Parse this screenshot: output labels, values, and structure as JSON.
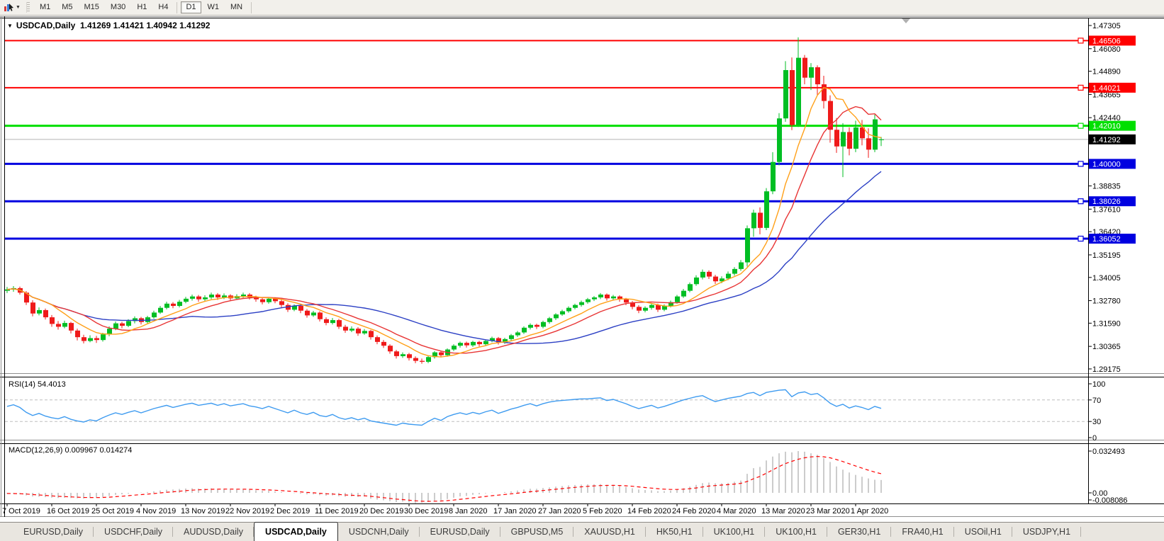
{
  "toolbar": {
    "cursor_tool_icon": "chart-cursor-icon",
    "dropdown_icon": "chevron-down-icon",
    "timeframes": [
      {
        "label": "M1",
        "active": false
      },
      {
        "label": "M5",
        "active": false
      },
      {
        "label": "M15",
        "active": false
      },
      {
        "label": "M30",
        "active": false
      },
      {
        "label": "H1",
        "active": false
      },
      {
        "label": "H4",
        "active": false
      },
      {
        "label": "D1",
        "active": true
      },
      {
        "label": "W1",
        "active": false
      },
      {
        "label": "MN",
        "active": false
      }
    ]
  },
  "chart": {
    "title": "USDCAD,Daily",
    "ohlc_text": "1.41269 1.41421 1.40942 1.41292",
    "expander_icon": "triangle-down-icon"
  },
  "chart_data": {
    "type": "candlestick",
    "symbol": "USDCAD",
    "timeframe": "Daily",
    "current_bar": {
      "open": "1.41269",
      "high": "1.41421",
      "low": "1.40942",
      "close": "1.41292"
    },
    "current_price": {
      "value": "1.41292",
      "color": "#000000"
    },
    "y_axis": {
      "ticks": [
        "1.47305",
        "1.46080",
        "1.44890",
        "1.43665",
        "1.42440",
        "1.38835",
        "1.37610",
        "1.36420",
        "1.35195",
        "1.34005",
        "1.32780",
        "1.31590",
        "1.30365",
        "1.29175"
      ],
      "range": [
        1.286,
        1.4776
      ]
    },
    "x_axis": {
      "labels": [
        "7 Oct 2019",
        "16 Oct 2019",
        "25 Oct 2019",
        "4 Nov 2019",
        "13 Nov 2019",
        "22 Nov 2019",
        "2 Dec 2019",
        "11 Dec 2019",
        "20 Dec 2019",
        "30 Dec 2019",
        "8 Jan 2020",
        "17 Jan 2020",
        "27 Jan 2020",
        "5 Feb 2020",
        "14 Feb 2020",
        "24 Feb 2020",
        "4 Mar 2020",
        "13 Mar 2020",
        "23 Mar 2020",
        "1 Apr 2020"
      ],
      "label_step": 7
    },
    "levels": [
      {
        "value": "1.46506",
        "color": "#FF0000",
        "width": 2
      },
      {
        "value": "1.44021",
        "color": "#FF0000",
        "width": 2
      },
      {
        "value": "1.42010",
        "color": "#00DF00",
        "width": 3
      },
      {
        "value": "1.40000",
        "color": "#0000E0",
        "width": 3
      },
      {
        "value": "1.38026",
        "color": "#0000E0",
        "width": 3
      },
      {
        "value": "1.36052",
        "color": "#0000E0",
        "width": 3
      }
    ],
    "moving_averages": [
      {
        "name": "ma-slow",
        "period": 30,
        "color": "#2B3FC4"
      },
      {
        "name": "ma-mid",
        "period": 13,
        "color": "#E83535"
      },
      {
        "name": "ma-fast",
        "period": 8,
        "color": "#FFA018"
      }
    ],
    "style": {
      "bull": "#00BE23",
      "bear": "#EF1A1A",
      "background": "#FFFFFF",
      "axis_text": "#000000",
      "current_price_line": "#B4B4B4"
    },
    "candles": [
      [
        1.333,
        1.335,
        1.3318,
        1.3337
      ],
      [
        1.3337,
        1.3355,
        1.3325,
        1.3344
      ],
      [
        1.3344,
        1.3352,
        1.331,
        1.332
      ],
      [
        1.332,
        1.3328,
        1.3255,
        1.3268
      ],
      [
        1.3268,
        1.328,
        1.3195,
        1.321
      ],
      [
        1.321,
        1.3242,
        1.32,
        1.3228
      ],
      [
        1.3228,
        1.3236,
        1.3178,
        1.319
      ],
      [
        1.319,
        1.3202,
        1.314,
        1.3155
      ],
      [
        1.3155,
        1.317,
        1.3125,
        1.314
      ],
      [
        1.314,
        1.3172,
        1.3132,
        1.316
      ],
      [
        1.316,
        1.3166,
        1.3105,
        1.312
      ],
      [
        1.312,
        1.313,
        1.3068,
        1.3085
      ],
      [
        1.3085,
        1.3098,
        1.3052,
        1.3065
      ],
      [
        1.3065,
        1.3095,
        1.3058,
        1.308
      ],
      [
        1.308,
        1.3092,
        1.3055,
        1.307
      ],
      [
        1.307,
        1.3108,
        1.3062,
        1.31
      ],
      [
        1.31,
        1.3142,
        1.309,
        1.313
      ],
      [
        1.313,
        1.3168,
        1.3122,
        1.3158
      ],
      [
        1.3158,
        1.3166,
        1.3132,
        1.3145
      ],
      [
        1.3145,
        1.318,
        1.3138,
        1.317
      ],
      [
        1.317,
        1.3195,
        1.3158,
        1.3185
      ],
      [
        1.3185,
        1.3192,
        1.3152,
        1.3165
      ],
      [
        1.3165,
        1.3198,
        1.3158,
        1.319
      ],
      [
        1.319,
        1.3225,
        1.3182,
        1.3215
      ],
      [
        1.3215,
        1.325,
        1.3208,
        1.324
      ],
      [
        1.324,
        1.3272,
        1.3232,
        1.3262
      ],
      [
        1.3262,
        1.327,
        1.3238,
        1.325
      ],
      [
        1.325,
        1.3282,
        1.3242,
        1.3272
      ],
      [
        1.3272,
        1.3298,
        1.3264,
        1.3288
      ],
      [
        1.3288,
        1.331,
        1.3278,
        1.33
      ],
      [
        1.33,
        1.3308,
        1.3272,
        1.3285
      ],
      [
        1.3285,
        1.3306,
        1.3276,
        1.3295
      ],
      [
        1.3295,
        1.332,
        1.3286,
        1.331
      ],
      [
        1.331,
        1.3318,
        1.3282,
        1.3295
      ],
      [
        1.3295,
        1.3316,
        1.3286,
        1.3305
      ],
      [
        1.3305,
        1.3312,
        1.3278,
        1.329
      ],
      [
        1.329,
        1.3312,
        1.3282,
        1.3302
      ],
      [
        1.3302,
        1.332,
        1.3292,
        1.331
      ],
      [
        1.331,
        1.3318,
        1.3284,
        1.3295
      ],
      [
        1.3295,
        1.3304,
        1.3272,
        1.3285
      ],
      [
        1.3285,
        1.3294,
        1.3258,
        1.327
      ],
      [
        1.327,
        1.3296,
        1.3262,
        1.3288
      ],
      [
        1.3288,
        1.3296,
        1.3264,
        1.3275
      ],
      [
        1.3275,
        1.3284,
        1.3242,
        1.3255
      ],
      [
        1.3255,
        1.3264,
        1.3218,
        1.323
      ],
      [
        1.323,
        1.3258,
        1.3222,
        1.325
      ],
      [
        1.325,
        1.3258,
        1.3212,
        1.3225
      ],
      [
        1.3225,
        1.3234,
        1.3188,
        1.32
      ],
      [
        1.32,
        1.3224,
        1.3192,
        1.3215
      ],
      [
        1.3215,
        1.3222,
        1.3168,
        1.318
      ],
      [
        1.318,
        1.319,
        1.3148,
        1.316
      ],
      [
        1.316,
        1.3186,
        1.3152,
        1.3175
      ],
      [
        1.3175,
        1.3182,
        1.3128,
        1.314
      ],
      [
        1.314,
        1.315,
        1.3108,
        1.312
      ],
      [
        1.312,
        1.3142,
        1.3112,
        1.313
      ],
      [
        1.313,
        1.3138,
        1.3092,
        1.3105
      ],
      [
        1.3105,
        1.3128,
        1.3098,
        1.3118
      ],
      [
        1.3118,
        1.3124,
        1.3072,
        1.3085
      ],
      [
        1.3085,
        1.3094,
        1.3048,
        1.306
      ],
      [
        1.306,
        1.307,
        1.3028,
        1.304
      ],
      [
        1.304,
        1.3048,
        1.2998,
        1.301
      ],
      [
        1.301,
        1.3018,
        1.2972,
        1.2985
      ],
      [
        1.2985,
        1.3005,
        1.2976,
        1.2995
      ],
      [
        1.2995,
        1.3002,
        1.2962,
        1.2975
      ],
      [
        1.2975,
        1.2984,
        1.2948,
        1.296
      ],
      [
        1.296,
        1.2972,
        1.2945,
        1.2955
      ],
      [
        1.2955,
        1.2988,
        1.2948,
        1.298
      ],
      [
        1.298,
        1.3012,
        1.2972,
        1.3005
      ],
      [
        1.3005,
        1.3012,
        1.2978,
        1.299
      ],
      [
        1.299,
        1.3026,
        1.2982,
        1.302
      ],
      [
        1.302,
        1.3048,
        1.3012,
        1.304
      ],
      [
        1.304,
        1.3062,
        1.303,
        1.3055
      ],
      [
        1.3055,
        1.3062,
        1.303,
        1.3042
      ],
      [
        1.3042,
        1.3066,
        1.3034,
        1.306
      ],
      [
        1.306,
        1.3066,
        1.3036,
        1.3048
      ],
      [
        1.3048,
        1.3072,
        1.304,
        1.3065
      ],
      [
        1.3065,
        1.3088,
        1.3058,
        1.308
      ],
      [
        1.308,
        1.3086,
        1.3046,
        1.3058
      ],
      [
        1.3058,
        1.3082,
        1.305,
        1.3075
      ],
      [
        1.3075,
        1.3102,
        1.3066,
        1.3095
      ],
      [
        1.3095,
        1.3118,
        1.3086,
        1.311
      ],
      [
        1.311,
        1.3142,
        1.3102,
        1.3135
      ],
      [
        1.3135,
        1.3158,
        1.3126,
        1.315
      ],
      [
        1.315,
        1.3156,
        1.3128,
        1.314
      ],
      [
        1.314,
        1.3172,
        1.3132,
        1.3165
      ],
      [
        1.3165,
        1.3192,
        1.3156,
        1.3185
      ],
      [
        1.3185,
        1.3212,
        1.3176,
        1.3205
      ],
      [
        1.3205,
        1.323,
        1.3198,
        1.3222
      ],
      [
        1.3222,
        1.3248,
        1.3214,
        1.324
      ],
      [
        1.324,
        1.3262,
        1.3232,
        1.3255
      ],
      [
        1.3255,
        1.3278,
        1.3246,
        1.327
      ],
      [
        1.327,
        1.3292,
        1.3262,
        1.3285
      ],
      [
        1.3285,
        1.3302,
        1.3276,
        1.3295
      ],
      [
        1.3295,
        1.3318,
        1.3286,
        1.331
      ],
      [
        1.331,
        1.3316,
        1.3278,
        1.329
      ],
      [
        1.329,
        1.3308,
        1.328,
        1.33
      ],
      [
        1.33,
        1.3306,
        1.3272,
        1.3285
      ],
      [
        1.3285,
        1.3292,
        1.3254,
        1.3268
      ],
      [
        1.3268,
        1.3276,
        1.3232,
        1.3245
      ],
      [
        1.3245,
        1.3254,
        1.3212,
        1.3225
      ],
      [
        1.3225,
        1.3248,
        1.3216,
        1.324
      ],
      [
        1.324,
        1.3264,
        1.323,
        1.3255
      ],
      [
        1.3255,
        1.3262,
        1.3218,
        1.323
      ],
      [
        1.323,
        1.3258,
        1.3222,
        1.325
      ],
      [
        1.325,
        1.3278,
        1.3242,
        1.327
      ],
      [
        1.327,
        1.3308,
        1.3262,
        1.33
      ],
      [
        1.33,
        1.334,
        1.3292,
        1.333
      ],
      [
        1.333,
        1.3374,
        1.3322,
        1.3365
      ],
      [
        1.3365,
        1.3412,
        1.3356,
        1.34
      ],
      [
        1.34,
        1.3442,
        1.339,
        1.343
      ],
      [
        1.343,
        1.3438,
        1.3392,
        1.3405
      ],
      [
        1.3405,
        1.3414,
        1.3366,
        1.338
      ],
      [
        1.338,
        1.3406,
        1.337,
        1.3395
      ],
      [
        1.3395,
        1.3432,
        1.3386,
        1.342
      ],
      [
        1.342,
        1.3455,
        1.341,
        1.3445
      ],
      [
        1.3445,
        1.3492,
        1.3435,
        1.348
      ],
      [
        1.348,
        1.3675,
        1.3458,
        1.366
      ],
      [
        1.366,
        1.3758,
        1.3615,
        1.3742
      ],
      [
        1.3742,
        1.377,
        1.3628,
        1.3662
      ],
      [
        1.3662,
        1.3872,
        1.365,
        1.3855
      ],
      [
        1.3855,
        1.4062,
        1.384,
        1.401
      ],
      [
        1.401,
        1.4268,
        1.3992,
        1.424
      ],
      [
        1.424,
        1.4542,
        1.4222,
        1.4495
      ],
      [
        1.4495,
        1.4562,
        1.4178,
        1.4205
      ],
      [
        1.4205,
        1.4668,
        1.4195,
        1.456
      ],
      [
        1.456,
        1.4575,
        1.442,
        1.4455
      ],
      [
        1.4455,
        1.4532,
        1.439,
        1.451
      ],
      [
        1.451,
        1.452,
        1.436,
        1.442
      ],
      [
        1.442,
        1.4465,
        1.4292,
        1.4332
      ],
      [
        1.4332,
        1.4362,
        1.4112,
        1.418
      ],
      [
        1.418,
        1.4242,
        1.4058,
        1.4092
      ],
      [
        1.4092,
        1.4215,
        1.393,
        1.4168
      ],
      [
        1.4168,
        1.4192,
        1.4045,
        1.408
      ],
      [
        1.408,
        1.4228,
        1.4062,
        1.4192
      ],
      [
        1.4192,
        1.4232,
        1.4098,
        1.4135
      ],
      [
        1.4135,
        1.4188,
        1.4032,
        1.4075
      ],
      [
        1.4075,
        1.426,
        1.4062,
        1.4235
      ],
      [
        1.41269,
        1.41421,
        1.40942,
        1.41292
      ]
    ],
    "rsi": {
      "label": "RSI(14)",
      "value": "54.4013",
      "color": "#3E9BF0",
      "levels": [
        70,
        30
      ],
      "axis_ticks": [
        "100",
        "70",
        "30",
        "0"
      ],
      "values": [
        58,
        61,
        56,
        47,
        41,
        45,
        40,
        37,
        35,
        39,
        34,
        31,
        29,
        33,
        31,
        37,
        42,
        46,
        43,
        47,
        50,
        46,
        50,
        54,
        57,
        60,
        56,
        59,
        62,
        64,
        60,
        62,
        64,
        60,
        63,
        59,
        61,
        63,
        59,
        57,
        54,
        58,
        54,
        50,
        46,
        51,
        46,
        43,
        47,
        41,
        39,
        43,
        37,
        34,
        37,
        33,
        36,
        31,
        29,
        27,
        25,
        23,
        27,
        25,
        24,
        23,
        30,
        36,
        32,
        39,
        43,
        46,
        43,
        47,
        44,
        48,
        51,
        45,
        49,
        53,
        56,
        60,
        63,
        59,
        63,
        66,
        68,
        69,
        70,
        71,
        72,
        72,
        73,
        74,
        69,
        71,
        67,
        63,
        58,
        54,
        57,
        60,
        55,
        58,
        62,
        66,
        70,
        73,
        76,
        78,
        72,
        67,
        70,
        73,
        75,
        77,
        82,
        84,
        78,
        84,
        86,
        88,
        89,
        76,
        83,
        85,
        80,
        82,
        74,
        64,
        58,
        62,
        55,
        59,
        56,
        52,
        58,
        54.4
      ]
    },
    "macd": {
      "label": "MACD(12,26,9)",
      "value": "0.009967",
      "signal_value": "0.014274",
      "histogram_color": "#9A9A9A",
      "signal_color": "#FF0000",
      "axis_ticks": [
        "0.032493",
        "0.00",
        "-0.008086"
      ],
      "histogram": [
        -0.0005,
        -0.0008,
        -0.0012,
        -0.002,
        -0.0028,
        -0.003,
        -0.0034,
        -0.0038,
        -0.004,
        -0.0038,
        -0.004,
        -0.0042,
        -0.0044,
        -0.004,
        -0.0038,
        -0.0032,
        -0.0024,
        -0.0016,
        -0.0012,
        -0.0006,
        0.0,
        0.0002,
        0.0006,
        0.0012,
        0.0018,
        0.0024,
        0.0026,
        0.003,
        0.0034,
        0.0036,
        0.0034,
        0.0034,
        0.0036,
        0.0032,
        0.0032,
        0.0028,
        0.0028,
        0.0028,
        0.0024,
        0.002,
        0.0016,
        0.0016,
        0.0012,
        0.0006,
        0.0,
        -0.0002,
        -0.0006,
        -0.0012,
        -0.0012,
        -0.0018,
        -0.0022,
        -0.002,
        -0.0026,
        -0.003,
        -0.0028,
        -0.0032,
        -0.0028,
        -0.0045,
        -0.0052,
        -0.0058,
        -0.0065,
        -0.0072,
        -0.0068,
        -0.0075,
        -0.0081,
        -0.0078,
        -0.007,
        -0.006,
        -0.0058,
        -0.0048,
        -0.0038,
        -0.0028,
        -0.0024,
        -0.0016,
        -0.0012,
        -0.0004,
        0.0002,
        0.0,
        0.0006,
        0.0012,
        0.0018,
        0.0026,
        0.0032,
        0.0032,
        0.0038,
        0.0042,
        0.0048,
        0.0053,
        0.0058,
        0.0061,
        0.0064,
        0.0066,
        0.0066,
        0.0068,
        0.0062,
        0.006,
        0.0054,
        0.0046,
        0.0036,
        0.0026,
        0.0022,
        0.002,
        0.0014,
        0.0014,
        0.0018,
        0.0026,
        0.0036,
        0.0048,
        0.0062,
        0.0076,
        0.008,
        0.0074,
        0.0074,
        0.0078,
        0.0086,
        0.0096,
        0.0148,
        0.0192,
        0.0202,
        0.0252,
        0.0282,
        0.0308,
        0.032,
        0.0315,
        0.0325,
        0.032,
        0.0308,
        0.0296,
        0.027,
        0.024,
        0.0205,
        0.018,
        0.0158,
        0.014,
        0.0125,
        0.0112,
        0.0102,
        0.00997
      ]
    }
  },
  "tabs": {
    "items": [
      {
        "label": "EURUSD,Daily",
        "active": false
      },
      {
        "label": "USDCHF,Daily",
        "active": false
      },
      {
        "label": "AUDUSD,Daily",
        "active": false
      },
      {
        "label": "USDCAD,Daily",
        "active": true
      },
      {
        "label": "USDCNH,Daily",
        "active": false
      },
      {
        "label": "EURUSD,Daily",
        "active": false
      },
      {
        "label": "GBPUSD,M5",
        "active": false
      },
      {
        "label": "XAUUSD,H1",
        "active": false
      },
      {
        "label": "HK50,H1",
        "active": false
      },
      {
        "label": "UK100,H1",
        "active": false
      },
      {
        "label": "UK100,H1",
        "active": false
      },
      {
        "label": "GER30,H1",
        "active": false
      },
      {
        "label": "FRA40,H1",
        "active": false
      },
      {
        "label": "USOil,H1",
        "active": false
      },
      {
        "label": "USDJPY,H1",
        "active": false
      }
    ]
  }
}
